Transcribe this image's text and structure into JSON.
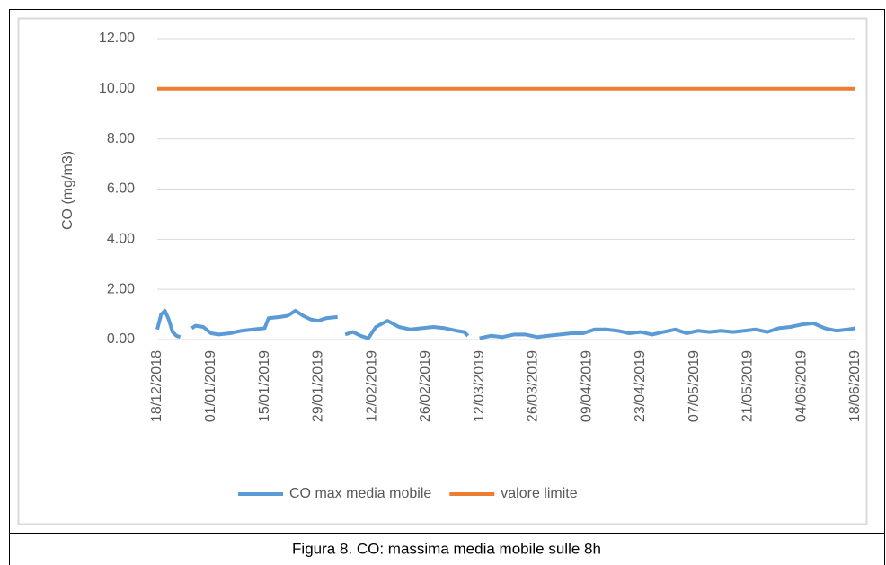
{
  "chart_data": {
    "type": "line",
    "caption": "Figura 8. CO: massima media mobile sulle 8h",
    "ylabel": "CO (mg/m3)",
    "ylim": [
      0,
      12
    ],
    "yticks": [
      {
        "value": 0,
        "label": "0.00"
      },
      {
        "value": 2,
        "label": "2.00"
      },
      {
        "value": 4,
        "label": "4.00"
      },
      {
        "value": 6,
        "label": "6.00"
      },
      {
        "value": 8,
        "label": "8.00"
      },
      {
        "value": 10,
        "label": "10.00"
      },
      {
        "value": 12,
        "label": "12.00"
      }
    ],
    "xlim": [
      "18/12/2018",
      "18/06/2019"
    ],
    "xticks": [
      "18/12/2018",
      "01/01/2019",
      "15/01/2019",
      "29/01/2019",
      "12/02/2019",
      "26/02/2019",
      "12/03/2019",
      "26/03/2019",
      "09/04/2019",
      "23/04/2019",
      "07/05/2019",
      "21/05/2019",
      "04/06/2019",
      "18/06/2019"
    ],
    "grid": true,
    "legend": "bottom",
    "series": [
      {
        "name": "CO max media mobile",
        "color": "#5b9bd5",
        "x": [
          "18/12/2018",
          "19/12/2018",
          "20/12/2018",
          "21/12/2018",
          "22/12/2018",
          "23/12/2018",
          "24/12/2018",
          "25/12/2018",
          "27/12/2018",
          "28/12/2018",
          "30/12/2018",
          "01/01/2019",
          "03/01/2019",
          "06/01/2019",
          "09/01/2019",
          "12/01/2019",
          "15/01/2019",
          "16/01/2019",
          "19/01/2019",
          "21/01/2019",
          "23/01/2019",
          "25/01/2019",
          "27/01/2019",
          "29/01/2019",
          "31/01/2019",
          "03/02/2019",
          "04/02/2019",
          "05/02/2019",
          "07/02/2019",
          "09/02/2019",
          "11/02/2019",
          "13/02/2019",
          "16/02/2019",
          "19/02/2019",
          "22/02/2019",
          "25/02/2019",
          "28/02/2019",
          "03/03/2019",
          "06/03/2019",
          "08/03/2019",
          "09/03/2019",
          "10/03/2019",
          "12/03/2019",
          "15/03/2019",
          "18/03/2019",
          "21/03/2019",
          "24/03/2019",
          "27/03/2019",
          "30/03/2019",
          "02/04/2019",
          "05/04/2019",
          "08/04/2019",
          "11/04/2019",
          "14/04/2019",
          "17/04/2019",
          "20/04/2019",
          "23/04/2019",
          "26/04/2019",
          "29/04/2019",
          "02/05/2019",
          "05/05/2019",
          "08/05/2019",
          "11/05/2019",
          "14/05/2019",
          "17/05/2019",
          "20/05/2019",
          "23/05/2019",
          "26/05/2019",
          "29/05/2019",
          "01/06/2019",
          "04/06/2019",
          "07/06/2019",
          "10/06/2019",
          "13/06/2019",
          "16/06/2019",
          "18/06/2019"
        ],
        "values": [
          0.4,
          1.0,
          1.15,
          0.8,
          0.3,
          0.15,
          0.1,
          null,
          0.45,
          0.55,
          0.5,
          0.25,
          0.2,
          0.25,
          0.35,
          0.4,
          0.45,
          0.85,
          0.9,
          0.95,
          1.15,
          0.95,
          0.8,
          0.75,
          0.85,
          0.9,
          null,
          0.2,
          0.3,
          0.15,
          0.05,
          0.5,
          0.75,
          0.5,
          0.4,
          0.45,
          0.5,
          0.45,
          0.35,
          0.3,
          0.15,
          null,
          0.05,
          0.15,
          0.1,
          0.2,
          0.2,
          0.1,
          0.15,
          0.2,
          0.25,
          0.25,
          0.4,
          0.4,
          0.35,
          0.25,
          0.3,
          0.2,
          0.3,
          0.4,
          0.25,
          0.35,
          0.3,
          0.35,
          0.3,
          0.35,
          0.4,
          0.3,
          0.45,
          0.5,
          0.6,
          0.65,
          0.45,
          0.35,
          0.4,
          0.45
        ]
      },
      {
        "name": "valore limite",
        "color": "#ed7d31",
        "x": [
          "18/12/2018",
          "18/06/2019"
        ],
        "values": [
          10,
          10
        ]
      }
    ]
  }
}
